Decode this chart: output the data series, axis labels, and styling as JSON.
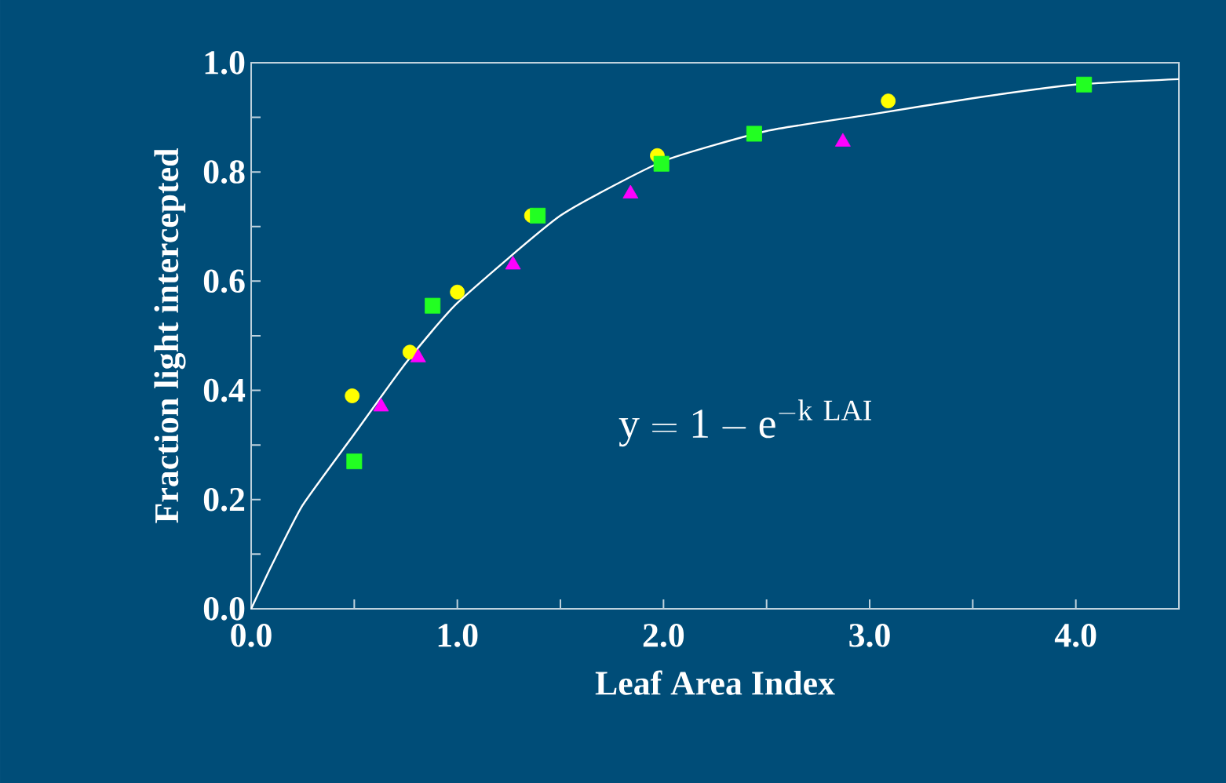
{
  "chart_data": {
    "type": "scatter",
    "xlabel": "Leaf Area Index",
    "ylabel": "Fraction light intercepted",
    "xlim": [
      0,
      4.5
    ],
    "ylim": [
      0,
      1.0
    ],
    "xticks": [
      {
        "value": 0,
        "label": "0.0"
      },
      {
        "value": 0.5,
        "label": null
      },
      {
        "value": 1.0,
        "label": "1.0"
      },
      {
        "value": 1.5,
        "label": null
      },
      {
        "value": 2.0,
        "label": "2.0"
      },
      {
        "value": 2.5,
        "label": null
      },
      {
        "value": 3.0,
        "label": "3.0"
      },
      {
        "value": 3.5,
        "label": null
      },
      {
        "value": 4.0,
        "label": "4.0"
      }
    ],
    "yticks": [
      {
        "value": 0,
        "label": "0.0"
      },
      {
        "value": 0.1,
        "label": null
      },
      {
        "value": 0.2,
        "label": "0.2"
      },
      {
        "value": 0.3,
        "label": null
      },
      {
        "value": 0.4,
        "label": "0.4"
      },
      {
        "value": 0.5,
        "label": null
      },
      {
        "value": 0.6,
        "label": "0.6"
      },
      {
        "value": 0.7,
        "label": null
      },
      {
        "value": 0.8,
        "label": "0.8"
      },
      {
        "value": 0.9,
        "label": null
      },
      {
        "value": 1.0,
        "label": "1.0"
      }
    ],
    "annotations": [
      "\\mathrm{y = 1 - e}^{\\mathrm{-k\\ LAI}}"
    ],
    "series": [
      {
        "type": "line",
        "color": "#ffffff",
        "marker": "none",
        "x": [
          0,
          0.1,
          0.25,
          0.5,
          0.75,
          1.0,
          1.5,
          2.0,
          2.5,
          3.0,
          3.5,
          4.0,
          4.5
        ],
        "values": [
          0,
          0.08,
          0.19,
          0.32,
          0.45,
          0.56,
          0.72,
          0.82,
          0.875,
          0.905,
          0.935,
          0.96,
          0.97
        ]
      },
      {
        "color": "#ffff00",
        "marker": "circle",
        "x": [
          0.49,
          0.77,
          1.0,
          1.36,
          1.97,
          3.09
        ],
        "values": [
          0.39,
          0.47,
          0.58,
          0.72,
          0.83,
          0.93
        ]
      },
      {
        "color": "#22ff22",
        "marker": "square",
        "x": [
          0.5,
          0.88,
          1.39,
          1.99,
          2.44,
          4.04
        ],
        "values": [
          0.27,
          0.555,
          0.72,
          0.815,
          0.87,
          0.96
        ]
      },
      {
        "color": "#ff00ff",
        "marker": "triangle",
        "x": [
          0.63,
          0.81,
          1.27,
          1.84,
          2.87
        ],
        "values": [
          0.37,
          0.46,
          0.63,
          0.76,
          0.855
        ]
      }
    ]
  }
}
